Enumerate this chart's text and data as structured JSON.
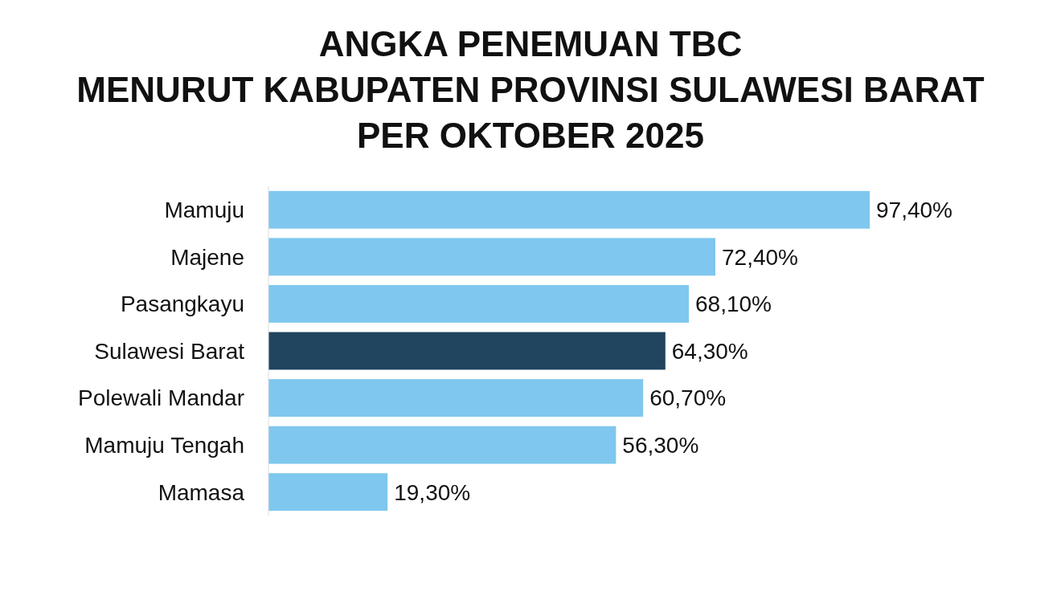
{
  "chart_data": {
    "type": "bar",
    "orientation": "horizontal",
    "title": "ANGKA PENEMUAN TBC\nMENURUT KABUPATEN PROVINSI SULAWESI BARAT\nPER OKTOBER 2025",
    "categories": [
      "Mamuju",
      "Majene",
      "Pasangkayu",
      "Sulawesi Barat",
      "Polewali Mandar",
      "Mamuju Tengah",
      "Mamasa"
    ],
    "values": [
      97.4,
      72.4,
      68.1,
      64.3,
      60.7,
      56.3,
      19.3
    ],
    "colors": [
      "#7fc7ee",
      "#7fc7ee",
      "#7fc7ee",
      "#21445f",
      "#7fc7ee",
      "#7fc7ee",
      "#7fc7ee"
    ],
    "value_labels": [
      "97,40%",
      "72,40%",
      "68,10%",
      "64,30%",
      "60,70%",
      "56,30%",
      "19,30%"
    ]
  }
}
